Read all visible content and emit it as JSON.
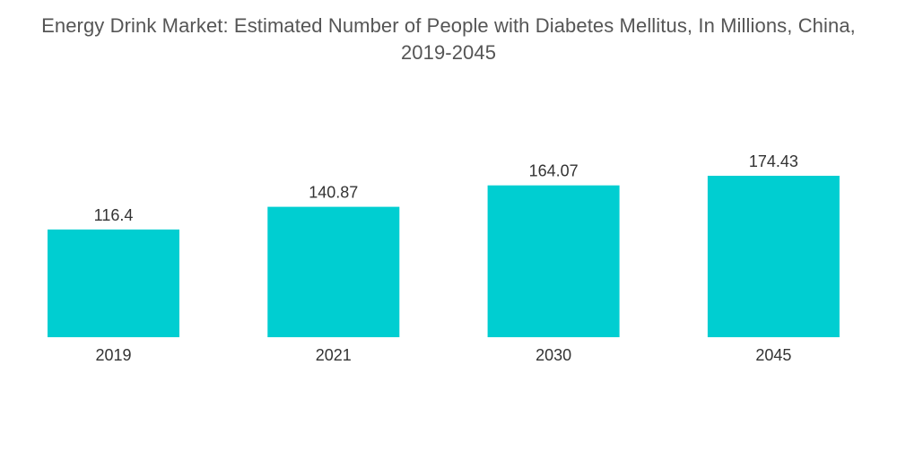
{
  "chart_data": {
    "type": "bar",
    "title_line1": "Energy Drink Market: Estimated Number of People with Diabetes Mellitus, In Millions, China,",
    "title_line2": "2019-2045",
    "categories": [
      "2019",
      "2021",
      "2030",
      "2045"
    ],
    "values": [
      116.4,
      140.87,
      164.07,
      174.43
    ],
    "value_labels": [
      "116.4",
      "140.87",
      "164.07",
      "174.43"
    ],
    "xlabel": "",
    "ylabel": "",
    "ylim": [
      0,
      174.43
    ],
    "grid": false,
    "legend": "none",
    "colors": {
      "bar": "#00CED1",
      "text": "#333333",
      "title": "#555555"
    }
  }
}
